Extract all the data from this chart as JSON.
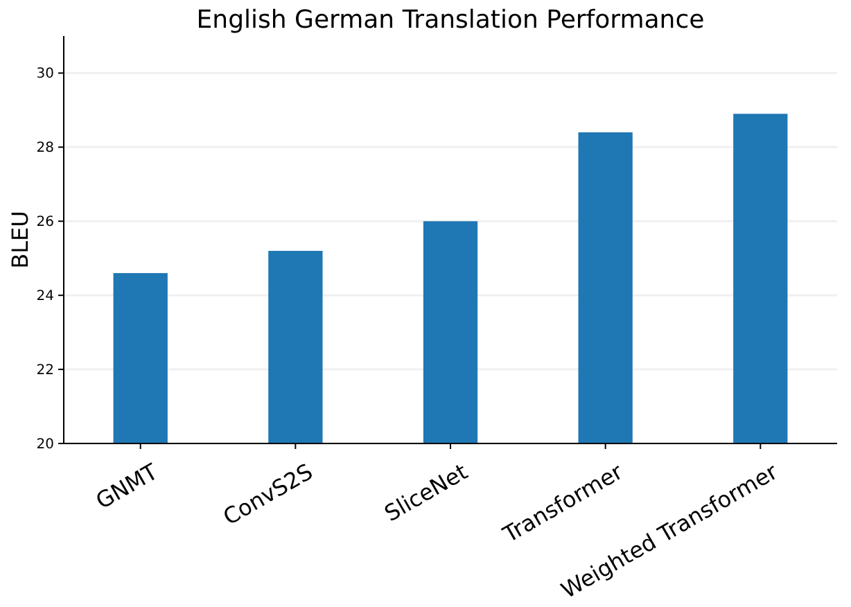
{
  "chart_data": {
    "type": "bar",
    "title": "English German Translation Performance",
    "ylabel": "BLEU",
    "categories": [
      "GNMT",
      "ConvS2S",
      "SliceNet",
      "Transformer",
      "Weighted Transformer"
    ],
    "values": [
      24.6,
      25.2,
      26.0,
      28.4,
      28.9
    ],
    "color": "#1f77b4",
    "ylim": [
      20,
      31
    ],
    "yticks": [
      20,
      22,
      24,
      26,
      28,
      30
    ],
    "grid": "y"
  }
}
